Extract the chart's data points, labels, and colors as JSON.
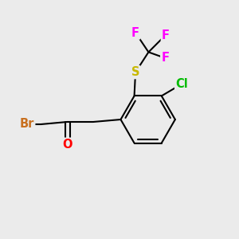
{
  "background_color": "#ebebeb",
  "atom_colors": {
    "C": "#000000",
    "Br": "#c87020",
    "O": "#ff0000",
    "S": "#c8b800",
    "F": "#ff00ff",
    "Cl": "#00bb00"
  },
  "bond_color": "#000000",
  "bond_width": 1.5,
  "font_size": 10.5
}
